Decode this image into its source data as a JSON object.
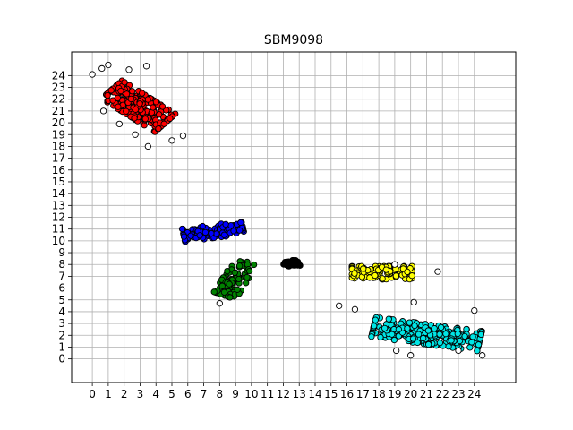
{
  "chart_data": {
    "type": "scatter",
    "title": "SBM9098",
    "xlabel": "",
    "ylabel": "",
    "xlim": [
      -1.3,
      26.6
    ],
    "ylim": [
      -2.0,
      26.0
    ],
    "xticks": [
      "0",
      "1",
      "2",
      "3",
      "4",
      "5",
      "6",
      "7",
      "8",
      "9",
      "10",
      "11",
      "12",
      "13",
      "14",
      "15",
      "16",
      "17",
      "18",
      "19",
      "20",
      "21",
      "22",
      "23",
      "24"
    ],
    "yticks": [
      "0",
      "1",
      "2",
      "3",
      "4",
      "5",
      "6",
      "7",
      "8",
      "9",
      "10",
      "11",
      "12",
      "13",
      "14",
      "15",
      "16",
      "17",
      "18",
      "19",
      "20",
      "21",
      "22",
      "23",
      "24"
    ],
    "grid": true,
    "legend": "none",
    "clusters": [
      {
        "color": "#ff0000",
        "shape": "ellipse",
        "center": [
          2.9,
          21.4
        ],
        "spread": [
          2.2,
          1.0
        ],
        "angle_deg": -40,
        "count": 240
      },
      {
        "color": "#0000ff",
        "shape": "ellipse",
        "center": [
          7.6,
          10.8
        ],
        "spread": [
          1.9,
          0.55
        ],
        "angle_deg": 10,
        "count": 120
      },
      {
        "color": "#008000",
        "shape": "ellipse",
        "center": [
          9.0,
          6.8
        ],
        "spread": [
          0.75,
          1.6
        ],
        "angle_deg": -25,
        "count": 90
      },
      {
        "color": "#000000",
        "shape": "ellipse",
        "center": [
          12.5,
          8.1
        ],
        "spread": [
          0.55,
          0.25
        ],
        "angle_deg": 0,
        "count": 28
      },
      {
        "color": "#ffff00",
        "shape": "ellipse",
        "center": [
          18.2,
          7.3
        ],
        "spread": [
          1.9,
          0.55
        ],
        "angle_deg": 0,
        "count": 110
      },
      {
        "color": "#00e5e5",
        "shape": "ellipse",
        "center": [
          21.0,
          2.1
        ],
        "spread": [
          3.4,
          0.85
        ],
        "angle_deg": -10,
        "count": 280
      }
    ],
    "outliers": [
      [
        1.0,
        24.9
      ],
      [
        0.6,
        24.6
      ],
      [
        2.3,
        24.5
      ],
      [
        3.4,
        24.8
      ],
      [
        0.0,
        24.1
      ],
      [
        0.7,
        21.0
      ],
      [
        1.7,
        19.9
      ],
      [
        2.7,
        19.0
      ],
      [
        3.5,
        18.0
      ],
      [
        5.0,
        18.5
      ],
      [
        5.7,
        18.9
      ],
      [
        8.0,
        4.7
      ],
      [
        15.5,
        4.5
      ],
      [
        16.5,
        4.2
      ],
      [
        21.7,
        7.4
      ],
      [
        19.0,
        8.0
      ],
      [
        19.1,
        0.7
      ],
      [
        20.2,
        4.8
      ],
      [
        23.0,
        0.7
      ],
      [
        24.0,
        4.1
      ],
      [
        24.5,
        0.3
      ],
      [
        20.0,
        0.3
      ]
    ]
  }
}
